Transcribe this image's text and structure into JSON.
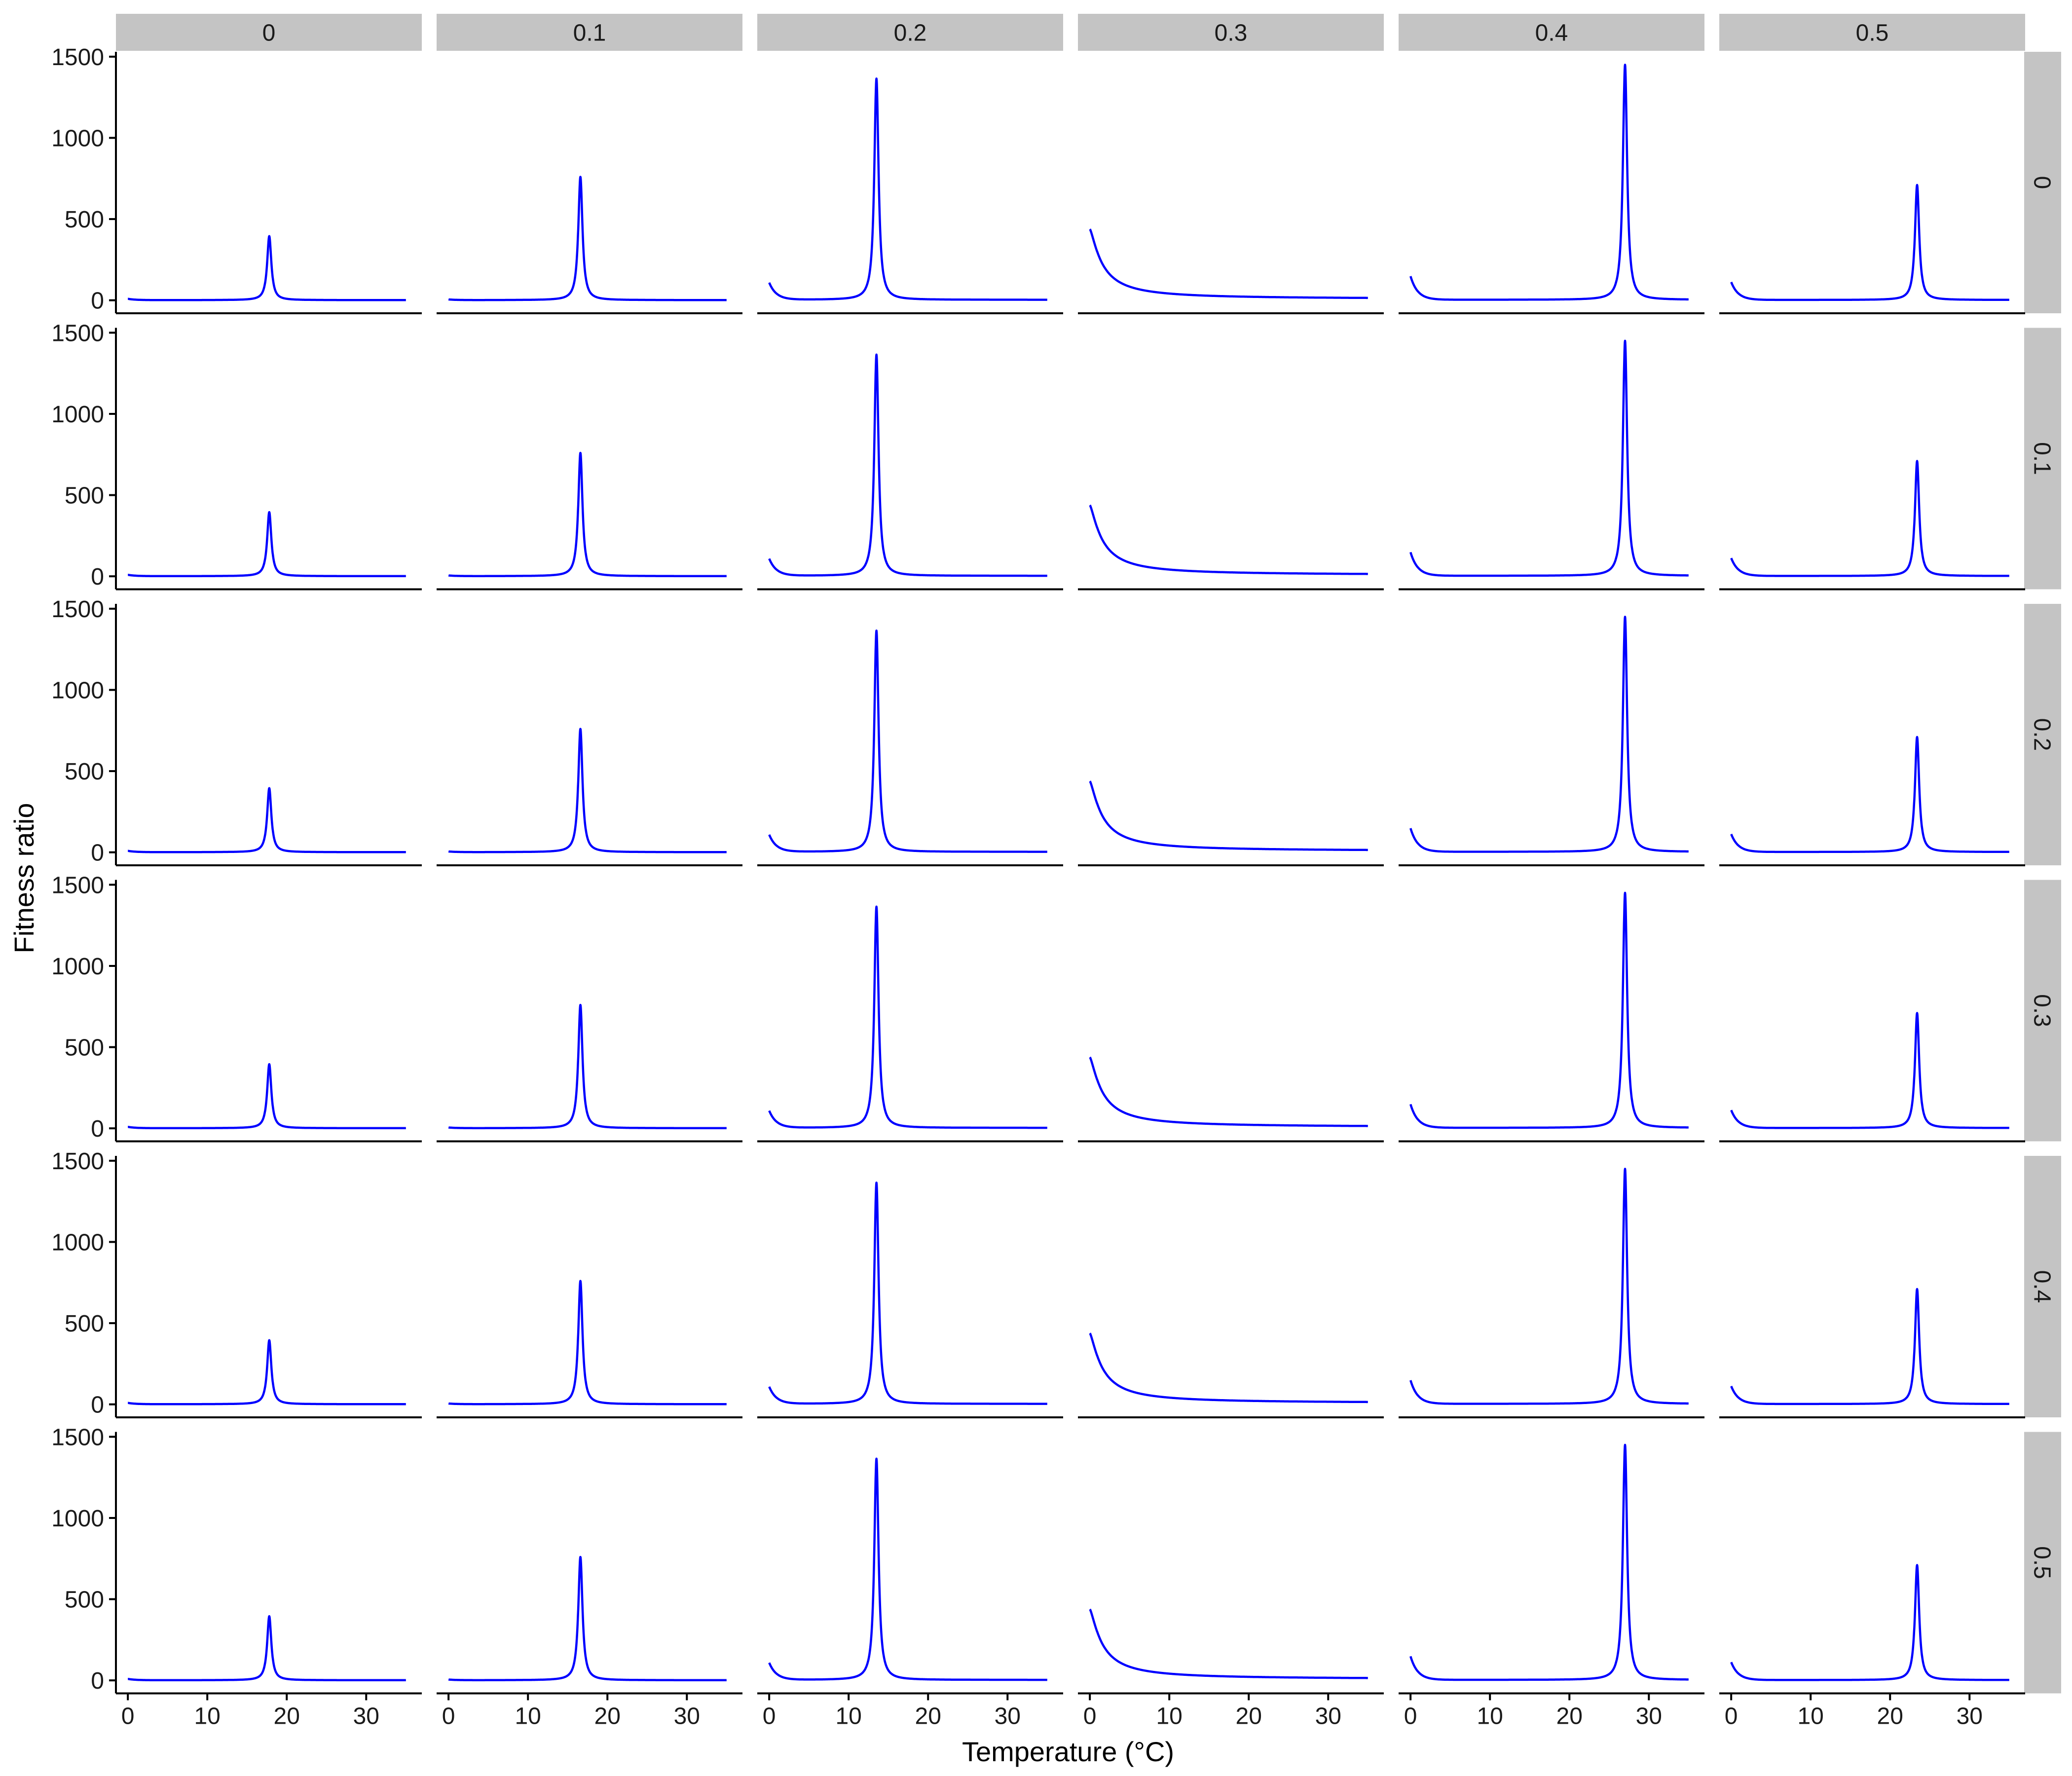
{
  "chart_data": {
    "type": "line",
    "facet_layout": "grid",
    "xlabel": "Temperature (°C)",
    "ylabel": "Fitness ratio",
    "xlim": [
      -1.5,
      37
    ],
    "ylim": [
      -80,
      1530
    ],
    "x_ticks": [
      0,
      10,
      20,
      30
    ],
    "y_ticks": [
      0,
      500,
      1000,
      1500
    ],
    "column_strips": [
      "0",
      "0.1",
      "0.2",
      "0.3",
      "0.4",
      "0.5"
    ],
    "row_strips": [
      "0",
      "0.1",
      "0.2",
      "0.3",
      "0.4",
      "0.5"
    ],
    "line_color": "#0000ff",
    "strip_color": "#c4c4c4",
    "grid": false,
    "note": "Each row of panels is identical; each column shows one series.",
    "series": [
      {
        "column": "0",
        "peak_x": 17.8,
        "peak_y": 395,
        "edge_y": 8,
        "tail_y": 1
      },
      {
        "column": "0.1",
        "peak_x": 16.6,
        "peak_y": 760,
        "edge_y": 4,
        "tail_y": 1
      },
      {
        "column": "0.2",
        "peak_x": 13.5,
        "peak_y": 1365,
        "edge_y": 105,
        "tail_y": 3
      },
      {
        "column": "0.3",
        "peak_x": 0.0,
        "peak_y": 430,
        "edge_y": 430,
        "tail_y": 8
      },
      {
        "column": "0.4",
        "peak_x": 27.0,
        "peak_y": 1450,
        "edge_y": 145,
        "tail_y": 3
      },
      {
        "column": "0.5",
        "peak_x": 23.4,
        "peak_y": 710,
        "edge_y": 110,
        "tail_y": 2
      }
    ]
  }
}
